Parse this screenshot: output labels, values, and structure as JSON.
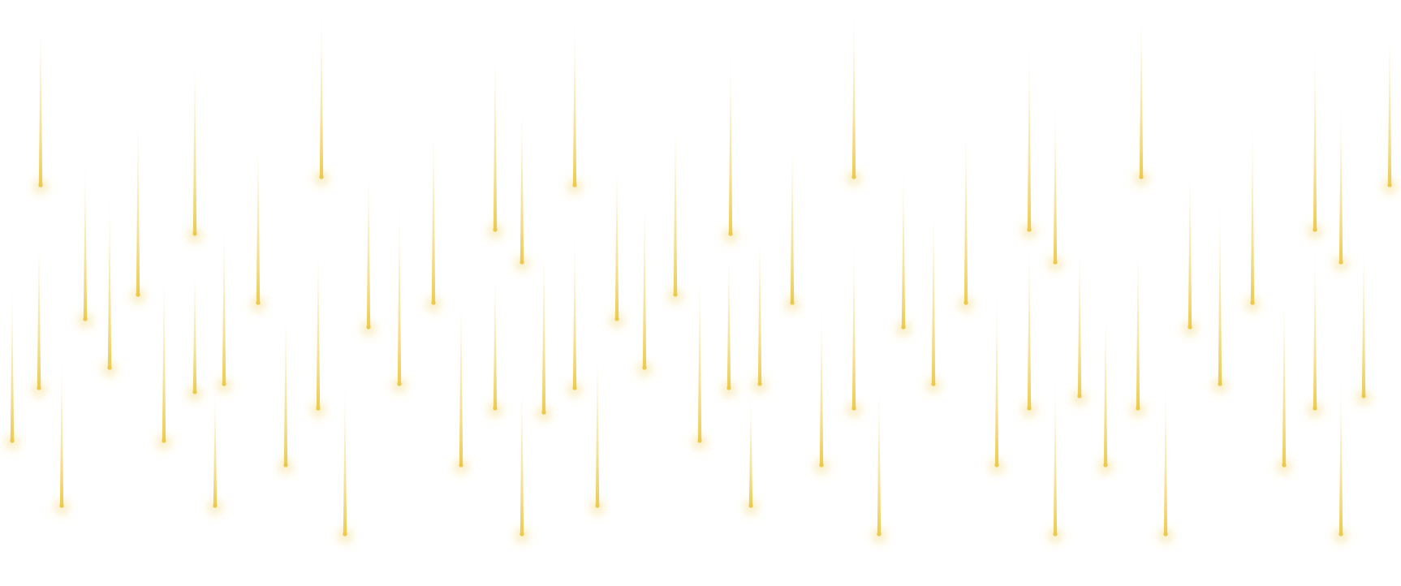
{
  "scene": {
    "background": "#ffffff",
    "streak_color": "#f2d56b",
    "streak_core_color": "#ecc94a",
    "streak_glow_color": "#f6e29a"
  }
}
